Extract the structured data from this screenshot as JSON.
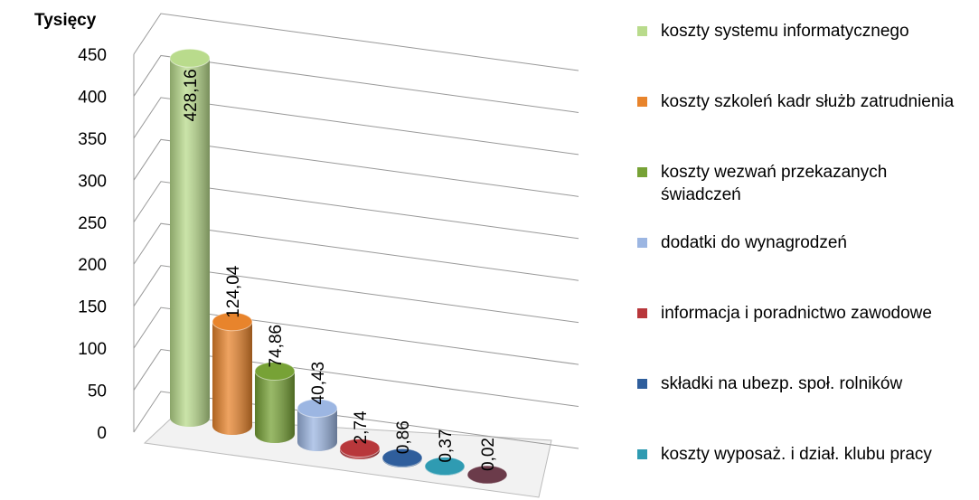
{
  "chart_data": {
    "type": "bar",
    "y_label": "Tysięcy",
    "categories": [
      "koszty systemu informatycznego",
      "koszty szkoleń kadr służb zatrudnienia",
      "koszty wezwań przekazanych świadczeń",
      "dodatki do wynagrodzeń",
      "informacja i poradnictwo zawodowe",
      "składki na ubezp. społ. rolników",
      "koszty wyposaż. i dział. klubu pracy",
      null
    ],
    "colors": [
      "#b9db8c",
      "#e8842c",
      "#77a236",
      "#9cb6e2",
      "#b8373b",
      "#2f5e9c",
      "#2f9bb2",
      "#6b3b4a"
    ],
    "values": [
      428.16,
      124.04,
      74.86,
      40.43,
      2.74,
      0.86,
      0.37,
      0.02
    ],
    "value_labels": [
      "428,16",
      "124,04",
      "74,86",
      "40,43",
      "2,74",
      "0,86",
      "0,37",
      "0,02"
    ],
    "ylim": [
      0,
      450
    ],
    "yticks": [
      0,
      50,
      100,
      150,
      200,
      250,
      300,
      350,
      400,
      450
    ],
    "grid": true
  }
}
